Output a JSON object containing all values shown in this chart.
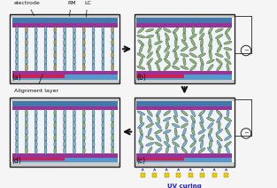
{
  "bg_color": "#f5f5f5",
  "frame_color": "#222222",
  "electrode_gray": "#cccccc",
  "electrode_blue": "#4477aa",
  "electrode_blue2": "#5599cc",
  "align_purple": "#993399",
  "align_red": "#cc2255",
  "lc_bg": "#e8f0f8",
  "lc_cyan": "#77aabb",
  "lc_green": "#88aa66",
  "lc_olive": "#aa9944",
  "lc_edge": "#224466",
  "uv_yellow": "#eecc00",
  "uv_blue": "#2222cc",
  "arrow_color": "#111111",
  "label_color": "#111111",
  "label_a": "(a)",
  "label_b": "(b)",
  "label_c": "(c)",
  "label_d": "(d)",
  "title_electrode": "electrode",
  "title_rm": "RM",
  "title_lc": "LC",
  "title_alignment": "Alignment layer",
  "title_uv": "UV curing"
}
